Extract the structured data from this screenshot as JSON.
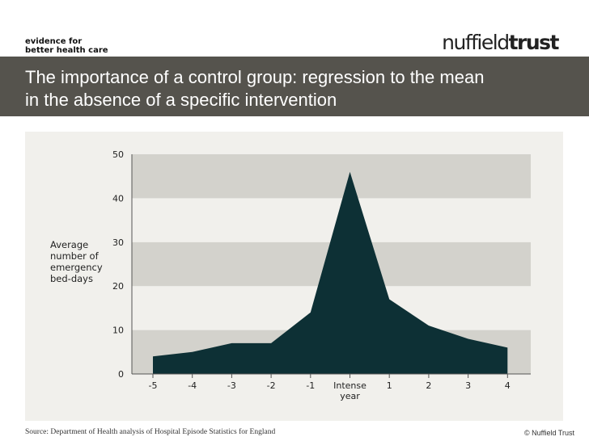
{
  "header": {
    "tagline": [
      "evidence for",
      "better health care"
    ],
    "logo_part1": "nuffield",
    "logo_part2": "trust"
  },
  "slide": {
    "title_lines": [
      "The importance of a control group: regression to the mean",
      "in the absence of a specific intervention"
    ]
  },
  "footer": {
    "source": "Source: Department of Health analysis of Hospital Episode Statistics for England",
    "copyright": "© Nuffield Trust"
  },
  "colors": {
    "title_bar": "#55534d",
    "area_fill": "#0d3035",
    "band_dark": "#d3d2cc",
    "band_light": "#f1f0ec"
  },
  "chart_data": {
    "type": "area",
    "title": "",
    "ylabel_lines": [
      "Average",
      "number of",
      "emergency",
      "bed-days"
    ],
    "xlabel": "",
    "x_tick_labels": [
      "-5",
      "-4",
      "-3",
      "-2",
      "-1",
      "Intense year",
      "1",
      "2",
      "3",
      "4"
    ],
    "values": [
      4,
      5,
      7,
      7,
      14,
      46,
      17,
      11,
      8,
      6
    ],
    "ylim": [
      0,
      50
    ],
    "y_ticks": [
      0,
      10,
      20,
      30,
      40,
      50
    ],
    "grid": "alternating horizontal bands",
    "legend": "none"
  }
}
